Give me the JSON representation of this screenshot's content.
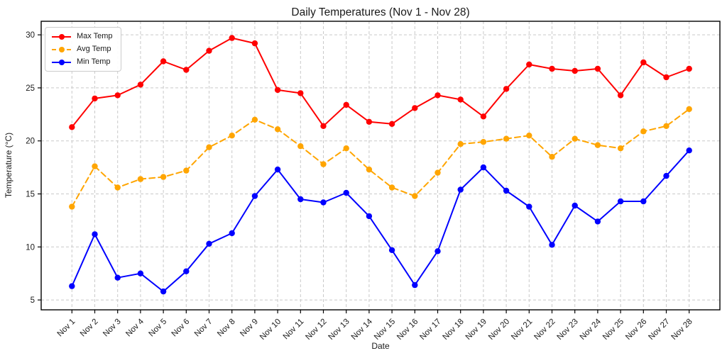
{
  "chart_data": {
    "type": "line",
    "title": "Daily Temperatures (Nov 1 - Nov 28)",
    "xlabel": "Date",
    "ylabel": "Temperature (°C)",
    "categories": [
      "Nov 1",
      "Nov 2",
      "Nov 3",
      "Nov 4",
      "Nov 5",
      "Nov 6",
      "Nov 7",
      "Nov 8",
      "Nov 9",
      "Nov 10",
      "Nov 11",
      "Nov 12",
      "Nov 13",
      "Nov 14",
      "Nov 15",
      "Nov 16",
      "Nov 17",
      "Nov 18",
      "Nov 19",
      "Nov 20",
      "Nov 21",
      "Nov 22",
      "Nov 23",
      "Nov 24",
      "Nov 25",
      "Nov 26",
      "Nov 27",
      "Nov 28"
    ],
    "yticks": [
      30,
      25,
      20,
      15,
      10,
      5
    ],
    "ylim": [
      4.07,
      31.28
    ],
    "x_edge_pad_days": 1.345,
    "grid": true,
    "grid_style": "dashed",
    "grid_color": "#c9c9c9",
    "legend_position": "upper-left",
    "background_color": "#ffffff",
    "spine_color": "#000000",
    "series": [
      {
        "name": "Max Temp",
        "color": "#ff0000",
        "style": "solid",
        "marker": "circle",
        "values": [
          21.3,
          24.0,
          24.3,
          25.3,
          27.5,
          26.7,
          28.5,
          29.7,
          29.2,
          24.8,
          24.5,
          21.4,
          23.4,
          21.8,
          21.6,
          23.1,
          24.3,
          23.9,
          22.3,
          24.9,
          27.2,
          26.8,
          26.6,
          26.8,
          24.3,
          27.4,
          26.0,
          26.8
        ]
      },
      {
        "name": "Avg Temp",
        "color": "#ffa500",
        "style": "dashed",
        "marker": "circle",
        "values": [
          13.8,
          17.6,
          15.6,
          16.4,
          16.6,
          17.2,
          19.4,
          20.5,
          22.0,
          21.1,
          19.5,
          17.8,
          19.3,
          17.3,
          15.6,
          14.8,
          17.0,
          19.7,
          19.9,
          20.2,
          20.5,
          18.5,
          20.2,
          19.6,
          19.3,
          20.9,
          21.4,
          23.0
        ]
      },
      {
        "name": "Min Temp",
        "color": "#0000ff",
        "style": "solid",
        "marker": "circle",
        "values": [
          6.3,
          11.2,
          7.1,
          7.5,
          5.8,
          7.7,
          10.3,
          11.3,
          14.8,
          17.3,
          14.5,
          14.2,
          15.1,
          12.9,
          9.7,
          6.4,
          9.6,
          15.4,
          17.5,
          15.3,
          13.8,
          10.2,
          13.9,
          12.4,
          14.3,
          14.3,
          16.7,
          19.1
        ]
      }
    ]
  }
}
